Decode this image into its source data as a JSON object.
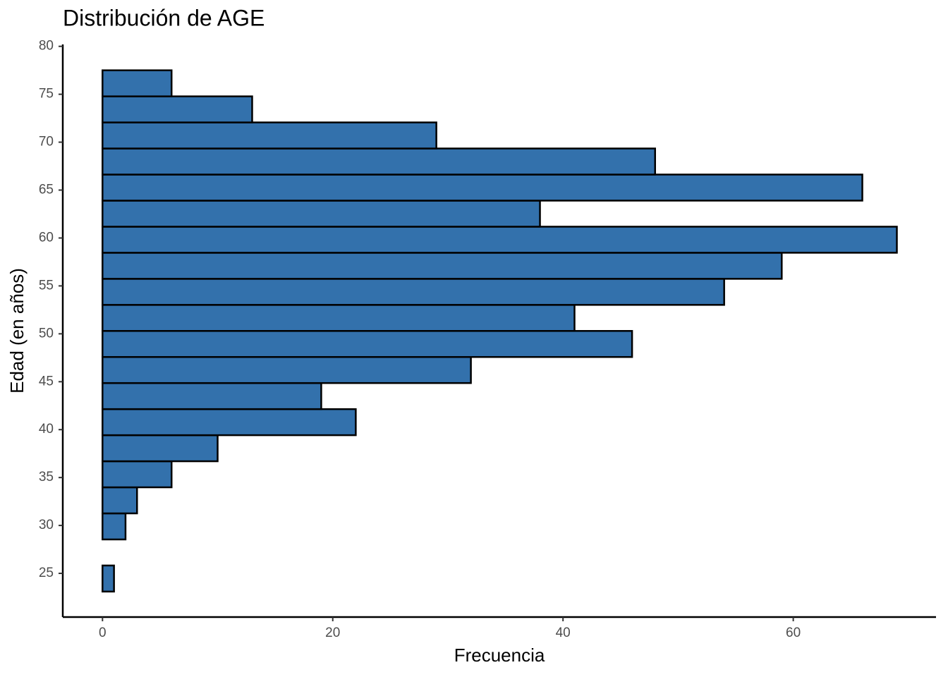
{
  "chart_data": {
    "type": "histogram",
    "orientation": "horizontal",
    "title": "Distribución de AGE",
    "xlabel": "Frecuencia",
    "ylabel": "Edad (en años)",
    "bins": [
      23.1,
      25.82,
      28.54,
      31.26,
      33.98,
      36.7,
      39.42,
      42.14,
      44.86,
      47.58,
      50.3,
      53.02,
      55.74,
      58.46,
      61.18,
      63.9,
      66.62,
      69.34,
      72.06,
      74.78,
      77.5
    ],
    "values": [
      1,
      0,
      2,
      3,
      6,
      10,
      22,
      19,
      32,
      46,
      41,
      54,
      59,
      69,
      38,
      66,
      48,
      29,
      13,
      6
    ],
    "color": "#3371ac",
    "edgecolor": "#000000",
    "xlim": [
      -3.45,
      72.4
    ],
    "xticks": [
      0,
      20,
      40,
      60
    ],
    "ylim": [
      20.44,
      80.2
    ],
    "yticks": [
      25,
      30,
      35,
      40,
      45,
      50,
      55,
      60,
      65,
      70,
      75,
      80
    ],
    "grid": false
  }
}
